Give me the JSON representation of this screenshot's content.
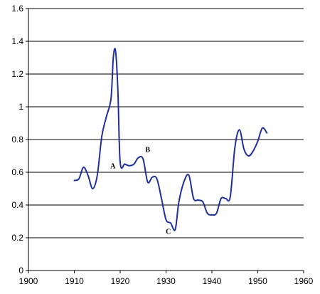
{
  "chart_data": {
    "type": "line",
    "title": "",
    "xlabel": "",
    "ylabel": "",
    "xlim": [
      1900,
      1960
    ],
    "ylim": [
      0,
      1.6
    ],
    "x_ticks": [
      1900,
      1910,
      1920,
      1930,
      1940,
      1950,
      1960
    ],
    "y_ticks": [
      0,
      0.2,
      0.4,
      0.6,
      0.8,
      1.0,
      1.2,
      1.4,
      1.6
    ],
    "x_tick_labels": [
      "1900",
      "1910",
      "1920",
      "1930",
      "1940",
      "1950",
      "1960"
    ],
    "y_tick_labels": [
      "0",
      "0.2",
      "0.4",
      "0.6",
      "0.8",
      "1",
      "1.2",
      "1.4",
      "1.6"
    ],
    "grid": "horizontal",
    "legend": "none",
    "colors": {
      "series": "#1f2f9c",
      "grid": "#000000",
      "axis": "#000000"
    },
    "series": [
      {
        "name": "",
        "points": [
          [
            1910.0,
            0.55
          ],
          [
            1911.0,
            0.56
          ],
          [
            1912.0,
            0.63
          ],
          [
            1913.0,
            0.58
          ],
          [
            1914.0,
            0.5
          ],
          [
            1915.0,
            0.58
          ],
          [
            1916.0,
            0.82
          ],
          [
            1917.0,
            0.94
          ],
          [
            1918.0,
            1.05
          ],
          [
            1918.5,
            1.3
          ],
          [
            1919.0,
            1.34
          ],
          [
            1919.5,
            1.1
          ],
          [
            1920.0,
            0.66
          ],
          [
            1921.0,
            0.65
          ],
          [
            1922.0,
            0.64
          ],
          [
            1923.0,
            0.65
          ],
          [
            1924.0,
            0.69
          ],
          [
            1925.0,
            0.68
          ],
          [
            1926.0,
            0.54
          ],
          [
            1927.0,
            0.57
          ],
          [
            1928.0,
            0.56
          ],
          [
            1929.0,
            0.44
          ],
          [
            1930.0,
            0.31
          ],
          [
            1931.0,
            0.29
          ],
          [
            1932.0,
            0.25
          ],
          [
            1932.8,
            0.42
          ],
          [
            1934.0,
            0.55
          ],
          [
            1935.0,
            0.58
          ],
          [
            1936.0,
            0.44
          ],
          [
            1937.0,
            0.43
          ],
          [
            1938.0,
            0.42
          ],
          [
            1939.0,
            0.35
          ],
          [
            1940.0,
            0.34
          ],
          [
            1941.0,
            0.35
          ],
          [
            1942.0,
            0.44
          ],
          [
            1943.0,
            0.44
          ],
          [
            1944.0,
            0.45
          ],
          [
            1945.0,
            0.75
          ],
          [
            1946.0,
            0.86
          ],
          [
            1947.0,
            0.74
          ],
          [
            1948.0,
            0.7
          ],
          [
            1949.0,
            0.73
          ],
          [
            1950.0,
            0.79
          ],
          [
            1951.0,
            0.87
          ],
          [
            1952.0,
            0.84
          ]
        ]
      }
    ],
    "annotations": [
      {
        "text": "A",
        "x": 1918.4,
        "y": 0.625
      },
      {
        "text": "B",
        "x": 1926.0,
        "y": 0.725
      },
      {
        "text": "C",
        "x": 1930.5,
        "y": 0.225
      }
    ]
  }
}
